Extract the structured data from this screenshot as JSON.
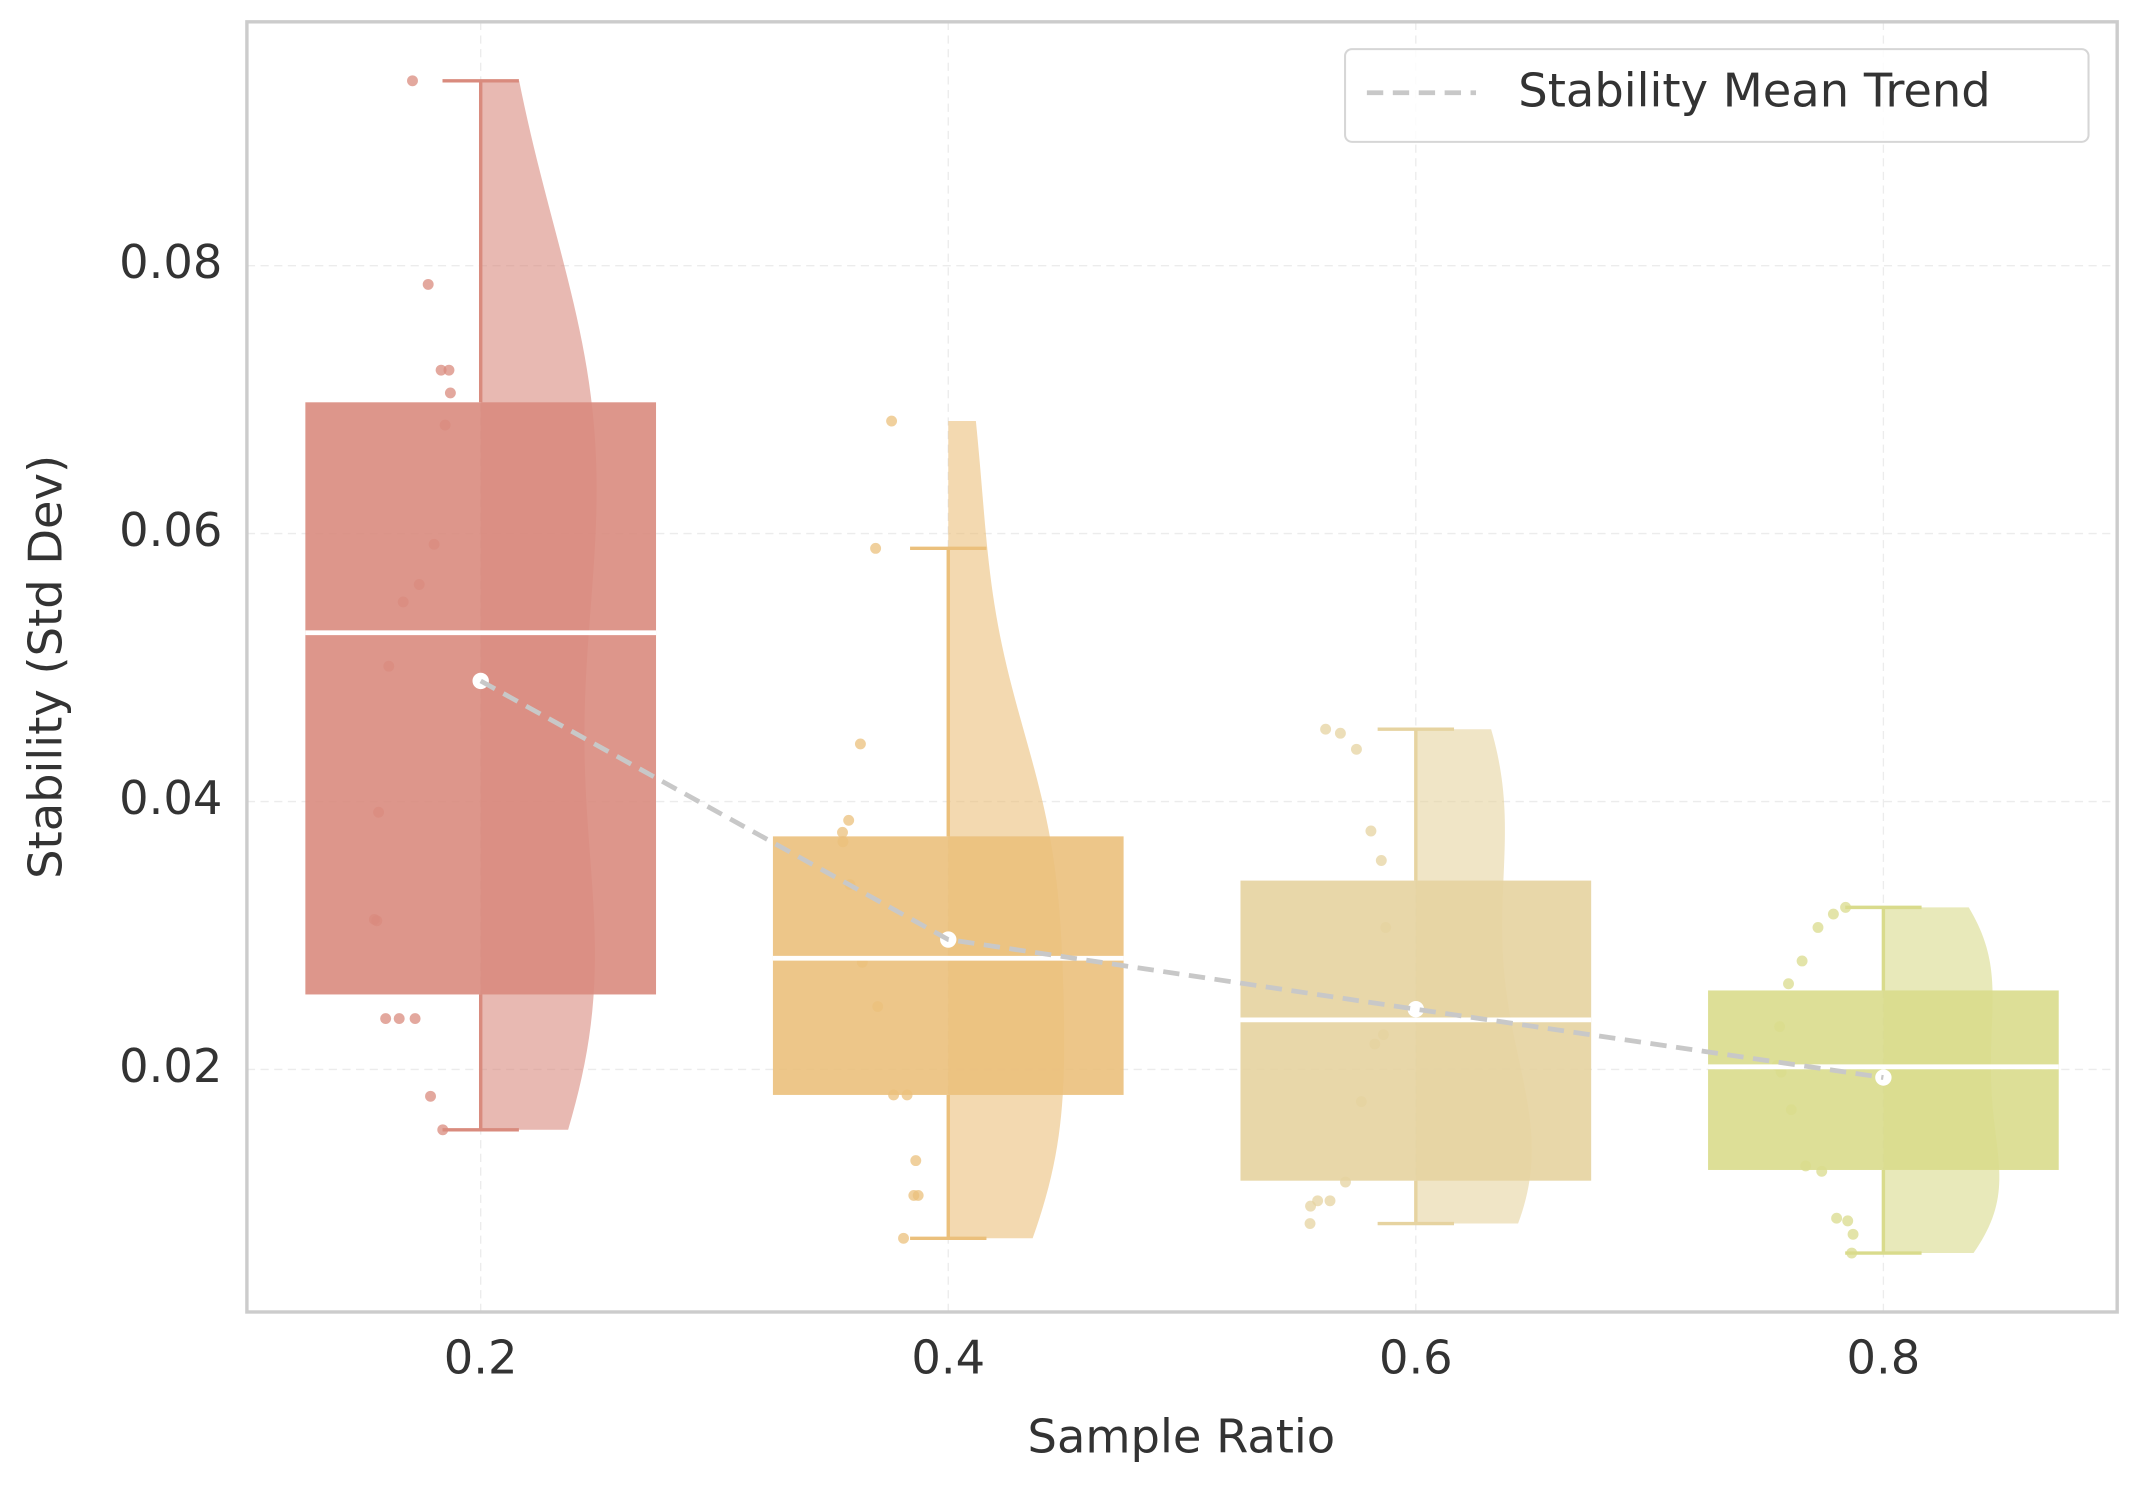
{
  "chart_data": {
    "type": "raincloud",
    "xlabel": "Sample Ratio",
    "ylabel": "Stability (Std Dev)",
    "xlim": [
      0.1,
      0.9
    ],
    "ylim": [
      0.0019,
      0.0982
    ],
    "xticks": [
      0.2,
      0.4,
      0.6,
      0.8
    ],
    "yticks": [
      0.02,
      0.04,
      0.06,
      0.08
    ],
    "grid": true,
    "legend_loc": "upper right",
    "groups": [
      {
        "x": 0.2,
        "color": "#d98b7e",
        "whislo": 0.0155,
        "q1": 0.0256,
        "med": 0.0526,
        "q3": 0.0698,
        "whishi": 0.0938,
        "mean": 0.049,
        "points": [
          0.0938,
          0.0786,
          0.0722,
          0.0722,
          0.0705,
          0.0681,
          0.0592,
          0.0562,
          0.0549,
          0.0501,
          0.0392,
          0.0312,
          0.0311,
          0.0238,
          0.0238,
          0.0238,
          0.018,
          0.0155
        ]
      },
      {
        "x": 0.4,
        "color": "#ebc07c",
        "whislo": 0.0074,
        "q1": 0.0181,
        "med": 0.0283,
        "q3": 0.0374,
        "whishi": 0.0589,
        "mean": 0.0297,
        "points": [
          0.0684,
          0.0589,
          0.0443,
          0.0386,
          0.0377,
          0.037,
          0.0338,
          0.028,
          0.0247,
          0.0181,
          0.0181,
          0.0132,
          0.0106,
          0.0106,
          0.0074
        ]
      },
      {
        "x": 0.6,
        "color": "#e6d3a0",
        "whislo": 0.0085,
        "q1": 0.0117,
        "med": 0.0237,
        "q3": 0.0341,
        "whishi": 0.0454,
        "mean": 0.0245,
        "points": [
          0.0454,
          0.0451,
          0.0439,
          0.0378,
          0.0356,
          0.0306,
          0.0226,
          0.0219,
          0.0176,
          0.0116,
          0.0102,
          0.0102,
          0.0098,
          0.0085
        ]
      },
      {
        "x": 0.8,
        "color": "#d9db8c",
        "whislo": 0.0063,
        "q1": 0.0125,
        "med": 0.0202,
        "q3": 0.0259,
        "whishi": 0.0321,
        "mean": 0.0194,
        "points": [
          0.0321,
          0.0316,
          0.0306,
          0.0281,
          0.0264,
          0.0232,
          0.0203,
          0.0198,
          0.017,
          0.0128,
          0.0124,
          0.0089,
          0.0087,
          0.0077,
          0.0063
        ]
      }
    ],
    "trend": {
      "name": "Stability Mean Trend",
      "color": "#c8c8c8",
      "style": "dashed"
    }
  }
}
